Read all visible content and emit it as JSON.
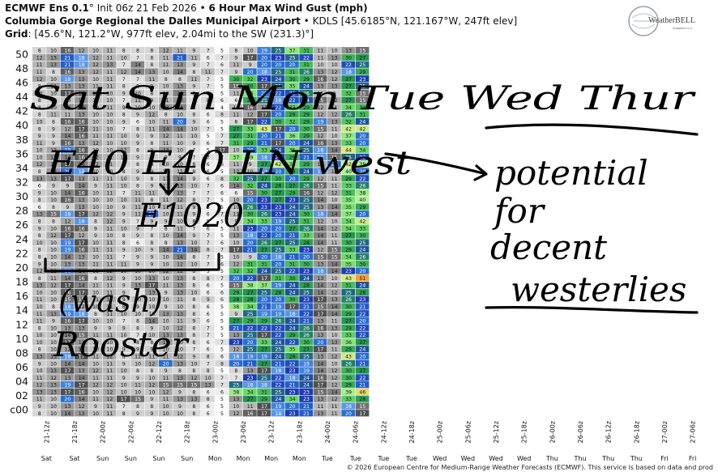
{
  "header": {
    "model": "ECMWF Ens 0.1",
    "init": "Init 06z 21 Feb 2026",
    "product": "6 Hour Max Wind Gust (mph)",
    "station": "Columbia Gorge Regional the Dalles Municipal Airport",
    "station_meta": "KDLS [45.6185°N, 121.167°W, 247ft elev]",
    "grid_label": "Grid",
    "grid_meta": "[45.6°N, 121.2°W, 977ft elev, 2.04mi to the SW (231.3)°]",
    "logo_text": "WeatherBELL",
    "logo_sub": "Analytics LLC"
  },
  "chart_data": {
    "type": "heatmap",
    "y_labels": [
      "50",
      "48",
      "46",
      "44",
      "42",
      "40",
      "38",
      "36",
      "34",
      "32",
      "30",
      "28",
      "26",
      "24",
      "22",
      "20",
      "18",
      "16",
      "14",
      "12",
      "10",
      "08",
      "06",
      "04",
      "02",
      "c00"
    ],
    "x_labels": [
      "21-12z",
      "21-18z",
      "22-00z",
      "22-06z",
      "22-12z",
      "22-18z",
      "23-00z",
      "23-06z",
      "23-12z",
      "23-18z",
      "24-00z",
      "24-06z",
      "24-12z",
      "24-18z",
      "25-00z",
      "25-06z",
      "25-12z",
      "25-18z",
      "26-00z",
      "26-06z",
      "26-12z",
      "26-18z",
      "27-00z",
      "27-06z"
    ],
    "day_labels": [
      "Sat",
      "Sat",
      "Sun",
      "Sun",
      "Sun",
      "Sun",
      "Mon",
      "Mon",
      "Mon",
      "Mon",
      "Tue",
      "Tue",
      "Tue",
      "Tue",
      "Wed",
      "Wed",
      "Wed",
      "Wed",
      "Thu",
      "Thu",
      "Thu",
      "Thu",
      "Fri",
      "Fri"
    ],
    "values": [
      [
        8,
        10,
        16,
        12,
        10,
        11,
        8,
        8,
        8,
        12,
        11,
        9,
        7,
        5,
        8,
        10,
        19,
        25,
        37,
        31,
        11,
        10,
        13,
        15
      ],
      [
        12,
        13,
        21,
        18,
        12,
        11,
        10,
        7,
        8,
        11,
        21,
        11,
        6,
        7,
        9,
        17,
        20,
        23,
        25,
        22,
        11,
        13,
        30,
        27
      ],
      [
        11,
        13,
        21,
        18,
        12,
        13,
        7,
        14,
        8,
        11,
        13,
        9,
        7,
        6,
        11,
        9,
        20,
        20,
        20,
        31,
        10,
        10,
        22,
        25
      ],
      [
        11,
        8,
        16,
        13,
        12,
        11,
        12,
        14,
        13,
        10,
        14,
        8,
        11,
        7,
        9,
        20,
        18,
        25,
        31,
        26,
        13,
        12,
        18,
        29
      ],
      [
        12,
        10,
        18,
        13,
        10,
        11,
        7,
        7,
        11,
        8,
        8,
        11,
        7,
        5,
        30,
        32,
        23,
        24,
        30,
        29,
        16,
        12,
        27,
        23
      ],
      [
        8,
        12,
        13,
        13,
        11,
        11,
        8,
        8,
        9,
        10,
        13,
        9,
        7,
        5,
        15,
        30,
        17,
        25,
        35,
        24,
        13,
        13,
        27,
        25
      ],
      [
        10,
        10,
        17,
        14,
        12,
        10,
        9,
        10,
        8,
        10,
        14,
        8,
        7,
        5,
        11,
        36,
        20,
        22,
        22,
        26,
        11,
        9,
        32,
        15
      ],
      [
        8,
        9,
        10,
        13,
        10,
        10,
        7,
        11,
        9,
        11,
        13,
        7,
        8,
        6,
        6,
        29,
        25,
        18,
        22,
        24,
        15,
        12,
        27,
        15
      ],
      [
        8,
        10,
        13,
        14,
        10,
        11,
        9,
        10,
        10,
        13,
        14,
        8,
        8,
        4,
        11,
        16,
        13,
        22,
        33,
        29,
        12,
        11,
        34,
        31
      ],
      [
        8,
        11,
        11,
        13,
        10,
        10,
        8,
        9,
        12,
        8,
        10,
        8,
        6,
        8,
        11,
        12,
        17,
        20,
        29,
        29,
        12,
        12,
        26,
        31
      ],
      [
        10,
        8,
        16,
        16,
        10,
        10,
        9,
        6,
        10,
        11,
        20,
        9,
        6,
        5,
        8,
        17,
        22,
        30,
        32,
        29,
        19,
        13,
        32,
        24
      ],
      [
        8,
        9,
        12,
        17,
        11,
        10,
        7,
        8,
        11,
        14,
        14,
        10,
        7,
        5,
        27,
        33,
        43,
        17,
        20,
        30,
        15,
        11,
        42,
        42
      ],
      [
        9,
        9,
        14,
        16,
        11,
        11,
        10,
        9,
        9,
        12,
        11,
        10,
        5,
        7,
        27,
        31,
        20,
        21,
        36,
        29,
        12,
        10,
        37,
        20
      ],
      [
        11,
        9,
        16,
        13,
        12,
        10,
        10,
        9,
        8,
        11,
        10,
        9,
        6,
        7,
        31,
        29,
        21,
        17,
        20,
        24,
        16,
        13,
        33,
        20
      ],
      [
        10,
        12,
        19,
        16,
        10,
        10,
        12,
        8,
        9,
        13,
        10,
        7,
        5,
        17,
        10,
        20,
        33,
        24,
        35,
        25,
        18,
        14,
        44,
        34
      ],
      [
        10,
        13,
        14,
        16,
        12,
        11,
        10,
        9,
        9,
        9,
        9,
        7,
        7,
        7,
        37,
        39,
        18,
        23,
        29,
        21,
        18,
        15,
        25,
        22
      ],
      [
        12,
        12,
        17,
        14,
        12,
        11,
        9,
        8,
        8,
        10,
        10,
        8,
        6,
        6,
        11,
        9,
        27,
        42,
        36,
        29,
        12,
        20,
        42,
        39
      ],
      [
        8,
        13,
        20,
        18,
        10,
        10,
        8,
        9,
        9,
        10,
        11,
        8,
        6,
        5,
        12,
        10,
        19,
        20,
        29,
        24,
        18,
        12,
        40,
        20
      ],
      [
        13,
        13,
        17,
        13,
        11,
        11,
        10,
        9,
        8,
        11,
        14,
        9,
        6,
        8,
        32,
        25,
        27,
        30,
        20,
        29,
        12,
        11,
        29,
        22
      ],
      [
        6,
        9,
        9,
        14,
        9,
        11,
        10,
        8,
        9,
        11,
        13,
        10,
        7,
        6,
        14,
        32,
        24,
        28,
        27,
        26,
        15,
        11,
        33,
        26
      ],
      [
        9,
        10,
        14,
        16,
        10,
        11,
        7,
        11,
        11,
        9,
        13,
        7,
        7,
        6,
        6,
        15,
        30,
        27,
        29,
        16,
        12,
        12,
        31,
        38
      ],
      [
        8,
        10,
        16,
        13,
        10,
        10,
        10,
        11,
        8,
        11,
        12,
        8,
        7,
        5,
        10,
        20,
        23,
        27,
        23,
        25,
        14,
        10,
        35,
        40
      ],
      [
        6,
        8,
        9,
        13,
        10,
        10,
        9,
        11,
        10,
        11,
        11,
        9,
        6,
        5,
        10,
        26,
        23,
        23,
        24,
        25,
        13,
        14,
        35,
        29
      ],
      [
        13,
        15,
        18,
        17,
        12,
        12,
        9,
        11,
        21,
        10,
        11,
        9,
        6,
        7,
        11,
        30,
        26,
        23,
        24,
        30,
        18,
        14,
        37,
        20
      ],
      [
        8,
        8,
        12,
        18,
        8,
        12,
        9,
        7,
        9,
        9,
        10,
        8,
        5,
        5,
        9,
        34,
        33,
        19,
        25,
        31,
        12,
        10,
        34,
        42
      ],
      [
        9,
        10,
        16,
        16,
        9,
        11,
        10,
        9,
        7,
        8,
        11,
        7,
        6,
        5,
        11,
        23,
        20,
        20,
        27,
        26,
        14,
        12,
        34,
        33
      ],
      [
        8,
        12,
        17,
        12,
        9,
        10,
        8,
        9,
        8,
        10,
        14,
        9,
        7,
        5,
        13,
        18,
        22,
        20,
        21,
        33,
        14,
        11,
        27,
        30
      ],
      [
        10,
        10,
        19,
        17,
        10,
        11,
        8,
        6,
        8,
        8,
        13,
        10,
        7,
        6,
        10,
        20,
        26,
        27,
        25,
        28,
        14,
        11,
        30,
        25
      ],
      [
        8,
        10,
        19,
        16,
        11,
        11,
        9,
        10,
        9,
        14,
        21,
        14,
        8,
        7,
        17,
        21,
        27,
        25,
        33,
        23,
        12,
        15,
        29,
        24
      ],
      [
        8,
        10,
        14,
        13,
        10,
        11,
        7,
        9,
        9,
        10,
        14,
        8,
        7,
        5,
        10,
        9,
        20,
        18,
        21,
        20,
        15,
        15,
        34,
        26
      ],
      [
        9,
        10,
        13,
        13,
        11,
        11,
        11,
        9,
        9,
        10,
        12,
        10,
        7,
        6,
        12,
        31,
        31,
        20,
        31,
        30,
        13,
        14,
        35,
        30
      ],
      [
        12,
        12,
        18,
        14,
        11,
        12,
        10,
        10,
        10,
        12,
        12,
        8,
        5,
        5,
        32,
        32,
        24,
        25,
        22,
        23,
        18,
        14,
        23,
        20
      ],
      [
        8,
        11,
        14,
        16,
        8,
        12,
        9,
        10,
        13,
        10,
        13,
        8,
        8,
        7,
        20,
        22,
        17,
        31,
        30,
        24,
        13,
        10,
        43,
        51
      ],
      [
        13,
        12,
        17,
        14,
        11,
        11,
        9,
        13,
        17,
        11,
        13,
        8,
        6,
        5,
        15,
        38,
        37,
        19,
        24,
        28,
        14,
        12,
        31,
        24
      ],
      [
        10,
        10,
        16,
        17,
        10,
        11,
        9,
        7,
        13,
        9,
        13,
        10,
        6,
        6,
        29,
        27,
        25,
        28,
        24,
        25,
        14,
        12,
        25,
        28
      ],
      [
        11,
        10,
        15,
        15,
        11,
        12,
        9,
        10,
        10,
        10,
        11,
        8,
        9,
        6,
        28,
        28,
        20,
        20,
        30,
        23,
        17,
        13,
        26,
        23
      ],
      [
        10,
        8,
        18,
        12,
        10,
        11,
        8,
        9,
        10,
        9,
        10,
        8,
        6,
        5,
        38,
        34,
        21,
        19,
        17,
        21,
        15,
        14,
        30,
        21
      ],
      [
        11,
        13,
        19,
        18,
        8,
        11,
        10,
        10,
        10,
        13,
        13,
        8,
        6,
        5,
        9,
        25,
        19,
        19,
        18,
        22,
        17,
        14,
        29,
        22
      ],
      [
        11,
        9,
        16,
        17,
        10,
        10,
        7,
        8,
        14,
        10,
        11,
        9,
        6,
        5,
        27,
        29,
        29,
        26,
        24,
        21,
        13,
        11,
        27,
        20
      ],
      [
        8,
        10,
        13,
        13,
        9,
        9,
        9,
        8,
        9,
        10,
        12,
        8,
        7,
        5,
        21,
        22,
        22,
        22,
        24,
        26,
        16,
        13,
        29,
        22
      ],
      [
        10,
        10,
        14,
        15,
        11,
        11,
        10,
        7,
        10,
        13,
        13,
        8,
        7,
        5,
        13,
        25,
        17,
        22,
        29,
        26,
        13,
        10,
        33,
        22
      ],
      [
        10,
        10,
        17,
        13,
        10,
        10,
        8,
        8,
        8,
        13,
        10,
        8,
        6,
        7,
        23,
        20,
        33,
        24,
        22,
        30,
        20,
        13,
        36,
        27
      ],
      [
        8,
        10,
        12,
        13,
        10,
        10,
        9,
        9,
        9,
        10,
        10,
        7,
        6,
        5,
        12,
        25,
        27,
        25,
        35,
        27,
        17,
        11,
        29,
        24
      ],
      [
        13,
        13,
        18,
        17,
        11,
        12,
        8,
        11,
        11,
        11,
        12,
        9,
        8,
        6,
        18,
        19,
        19,
        24,
        28,
        25,
        13,
        12,
        43,
        20
      ],
      [
        9,
        10,
        14,
        14,
        10,
        11,
        9,
        10,
        12,
        20,
        13,
        10,
        7,
        8,
        20,
        21,
        27,
        21,
        22,
        19,
        14,
        10,
        26,
        21
      ],
      [
        10,
        13,
        17,
        13,
        12,
        11,
        10,
        8,
        8,
        9,
        8,
        8,
        8,
        5,
        8,
        13,
        17,
        18,
        23,
        19,
        14,
        12,
        30,
        27
      ],
      [
        11,
        12,
        13,
        14,
        11,
        11,
        9,
        9,
        10,
        11,
        13,
        12,
        10,
        7,
        7,
        23,
        25,
        22,
        18,
        24,
        16,
        12,
        30,
        22
      ],
      [
        12,
        13,
        19,
        17,
        12,
        12,
        10,
        11,
        12,
        15,
        15,
        15,
        13,
        7,
        25,
        18,
        18,
        22,
        21,
        24,
        17,
        12,
        29,
        21
      ],
      [
        13,
        13,
        17,
        16,
        10,
        12,
        10,
        10,
        10,
        12,
        9,
        8,
        6,
        6,
        38,
        34,
        31,
        25,
        23,
        23,
        15,
        14,
        39,
        46
      ],
      [
        11,
        10,
        20,
        14,
        11,
        12,
        17,
        15,
        9,
        11,
        13,
        13,
        8,
        5,
        13,
        27,
        29,
        24,
        34,
        23,
        13,
        12,
        33,
        28
      ],
      [
        9,
        10,
        13,
        12,
        9,
        11,
        7,
        8,
        8,
        10,
        9,
        8,
        6,
        5,
        10,
        11,
        17,
        19,
        20,
        21,
        11,
        11,
        18,
        15
      ],
      [
        8,
        10,
        14,
        13,
        10,
        11,
        8,
        9,
        9,
        10,
        10,
        8,
        6,
        5,
        12,
        16,
        17,
        18,
        23,
        21,
        13,
        11,
        20,
        17
      ]
    ]
  },
  "annotations": {
    "days_top": "Sat Sun Mon Tue Wed Thur",
    "wind_dirs": "E40 E40 LN west",
    "e1020": "E1020",
    "potential": "potential",
    "for": "for",
    "decent": "decent",
    "westerlies": "westerlies",
    "wash": "(wash)",
    "rooster": "Rooster"
  },
  "footer": "© 2026 European Centre for Medium-Range Weather Forecasts (ECMWF). This service is based on data and prod"
}
